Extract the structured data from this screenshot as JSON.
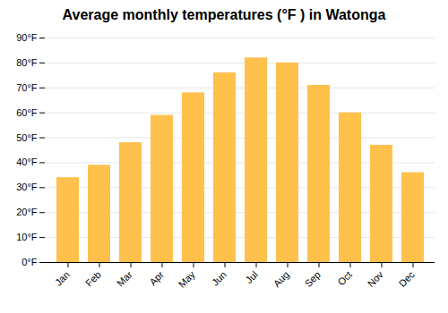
{
  "chart_data": {
    "type": "bar",
    "title": "Average monthly temperatures (°F ) in Watonga",
    "categories": [
      "Jan",
      "Feb",
      "Mar",
      "Apr",
      "May",
      "Jun",
      "Jul",
      "Aug",
      "Sep",
      "Oct",
      "Nov",
      "Dec"
    ],
    "values": [
      34,
      39,
      48,
      59,
      68,
      76,
      82,
      80,
      71,
      60,
      47,
      36
    ],
    "color": "#FFC04C",
    "ylim": [
      0,
      90
    ],
    "yticks": [
      {
        "value": 0,
        "label": "0°F"
      },
      {
        "value": 10,
        "label": "10°F"
      },
      {
        "value": 20,
        "label": "20°F"
      },
      {
        "value": 30,
        "label": "30°F"
      },
      {
        "value": 40,
        "label": "40°F"
      },
      {
        "value": 50,
        "label": "50°F"
      },
      {
        "value": 60,
        "label": "60°F"
      },
      {
        "value": 70,
        "label": "70°F"
      },
      {
        "value": 80,
        "label": "80°F"
      },
      {
        "value": 90,
        "label": "90°F"
      }
    ],
    "grid": true
  }
}
